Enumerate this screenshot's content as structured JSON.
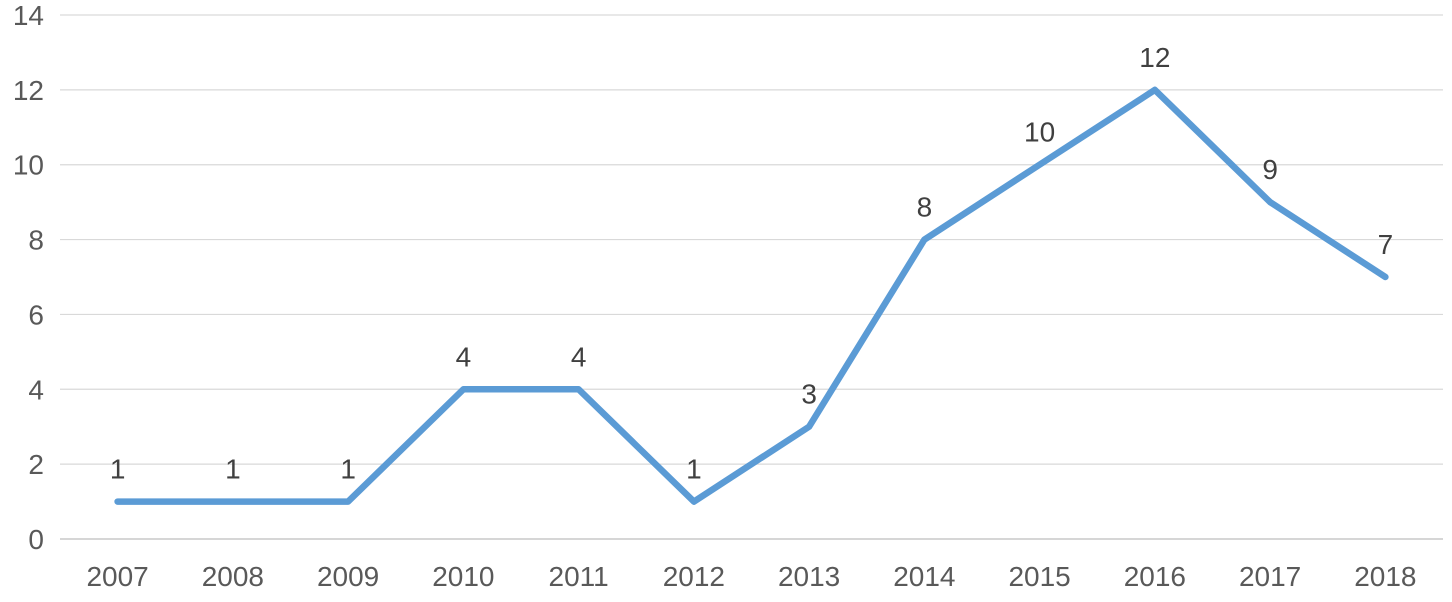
{
  "chart_data": {
    "type": "line",
    "title": "",
    "xlabel": "",
    "ylabel": "",
    "categories": [
      "2007",
      "2008",
      "2009",
      "2010",
      "2011",
      "2012",
      "2013",
      "2014",
      "2015",
      "2016",
      "2017",
      "2018"
    ],
    "series": [
      {
        "name": "count",
        "values": [
          1,
          1,
          1,
          4,
          4,
          1,
          3,
          8,
          10,
          12,
          9,
          7
        ]
      }
    ],
    "data_labels": [
      1,
      1,
      1,
      4,
      4,
      1,
      3,
      8,
      10,
      12,
      9,
      7
    ],
    "ylim": [
      0,
      14
    ],
    "yticks": [
      0,
      2,
      4,
      6,
      8,
      10,
      12,
      14
    ],
    "grid": "horizontal",
    "legend": "none",
    "colors": {
      "line": "#5B9BD5",
      "gridline": "#D9D9D9",
      "axis_line": "#C8C8C8",
      "axis_text": "#595959",
      "data_label_text": "#404040",
      "background": "#FFFFFF"
    }
  }
}
